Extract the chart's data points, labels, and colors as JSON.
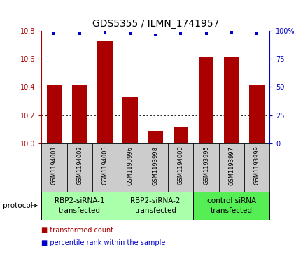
{
  "title": "GDS5355 / ILMN_1741957",
  "samples": [
    "GSM1194001",
    "GSM1194002",
    "GSM1194003",
    "GSM1193996",
    "GSM1193998",
    "GSM1194000",
    "GSM1193995",
    "GSM1193997",
    "GSM1193999"
  ],
  "bar_values": [
    10.41,
    10.41,
    10.73,
    10.33,
    10.09,
    10.12,
    10.61,
    10.61,
    10.41
  ],
  "percentile_values": [
    97,
    97,
    98,
    97,
    96,
    97,
    97,
    98,
    97
  ],
  "ylim_left": [
    10.0,
    10.8
  ],
  "ylim_right": [
    0,
    100
  ],
  "yticks_left": [
    10.0,
    10.2,
    10.4,
    10.6,
    10.8
  ],
  "yticks_right": [
    0,
    25,
    50,
    75,
    100
  ],
  "ytick_labels_right": [
    "0",
    "25",
    "50",
    "75",
    "100%"
  ],
  "bar_color": "#aa0000",
  "dot_color": "#0000cc",
  "groups": [
    {
      "label": "RBP2-siRNA-1\ntransfected",
      "start": 0,
      "end": 3,
      "color": "#aaffaa"
    },
    {
      "label": "RBP2-siRNA-2\ntransfected",
      "start": 3,
      "end": 6,
      "color": "#aaffaa"
    },
    {
      "label": "control siRNA\ntransfected",
      "start": 6,
      "end": 9,
      "color": "#55ee55"
    }
  ],
  "protocol_label": "protocol",
  "legend_items": [
    {
      "color": "#aa0000",
      "label": "transformed count"
    },
    {
      "color": "#0000cc",
      "label": "percentile rank within the sample"
    }
  ],
  "background_color": "#ffffff",
  "sample_area_color": "#cccccc",
  "grid_color": "#000000",
  "title_fontsize": 10,
  "tick_fontsize": 7,
  "sample_label_fontsize": 6,
  "group_label_fontsize": 7.5,
  "legend_fontsize": 7,
  "protocol_fontsize": 7.5
}
